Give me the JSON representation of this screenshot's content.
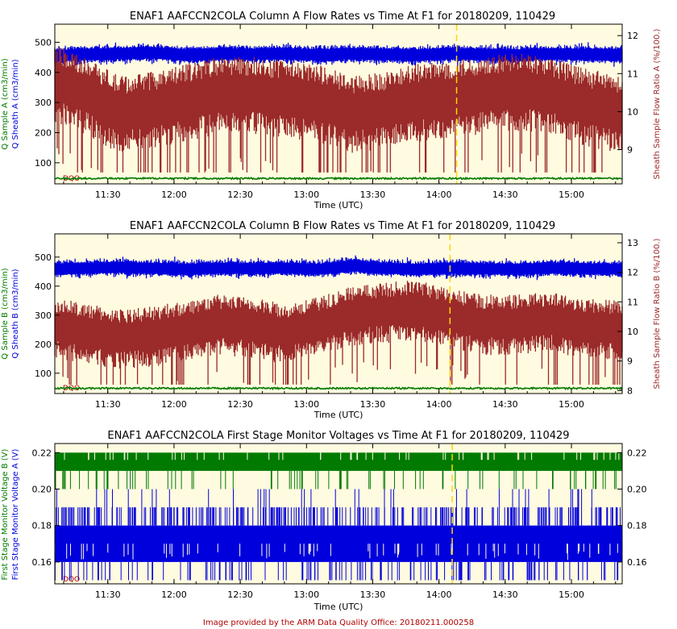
{
  "footer": "Image provided by the ARM Data Quality Office: 20180211.000258",
  "colors": {
    "plot_bg": "#fffbe0",
    "blue": "#0000dd",
    "red": "#9b2a2a",
    "green": "#007a00",
    "yellow_marker": "#ffd700"
  },
  "chart_data": [
    {
      "type": "line",
      "title": "ENAF1  AAFCCN2COLA  Column A Flow Rates vs Time At F1  for 20180209, 110429",
      "xlabel": "Time (UTC)",
      "x_ticks": [
        "11:30",
        "12:00",
        "12:30",
        "13:00",
        "13:30",
        "14:00",
        "14:30",
        "15:00"
      ],
      "x_range": [
        "11:06",
        "15:23"
      ],
      "ylabel_left": [
        {
          "text": "Q Sample A (cm3/min)",
          "color": "#007a00"
        },
        {
          "text": "Q Sheath A (cm3/min)",
          "color": "#0000dd"
        }
      ],
      "ylabel_right": {
        "text": "Sheath Sample Flow Ratio A (%/100.)",
        "color": "#9b2a2a"
      },
      "y_left_ticks": [
        "100",
        "200",
        "300",
        "400",
        "500"
      ],
      "y_left_range": [
        30,
        560
      ],
      "y_right_ticks": [
        "9",
        "10",
        "11",
        "12"
      ],
      "y_right_range": [
        8.1,
        12.3
      ],
      "dqo_label": "DQO",
      "series": [
        {
          "name": "Q Sheath A",
          "axis": "left",
          "color": "#0000dd",
          "x": [
            "11:06",
            "11:20",
            "11:35",
            "11:50",
            "12:05",
            "12:20",
            "12:35",
            "12:50",
            "13:05",
            "13:20",
            "13:35",
            "13:50",
            "14:05",
            "14:20",
            "14:35",
            "14:50",
            "15:05",
            "15:23"
          ],
          "values": [
            455,
            460,
            462,
            465,
            458,
            462,
            460,
            463,
            458,
            462,
            460,
            458,
            462,
            460,
            458,
            462,
            460,
            458
          ]
        },
        {
          "name": "Sheath Sample Flow Ratio A",
          "axis": "right",
          "color": "#9b2a2a",
          "x": [
            "11:06",
            "11:20",
            "11:35",
            "11:50",
            "12:05",
            "12:20",
            "12:35",
            "12:50",
            "13:05",
            "13:20",
            "13:35",
            "13:50",
            "14:05",
            "14:20",
            "14:35",
            "14:50",
            "15:05",
            "15:23"
          ],
          "values": [
            10.8,
            10.5,
            10.0,
            10.1,
            10.3,
            10.5,
            10.5,
            10.4,
            10.3,
            10.0,
            10.1,
            10.3,
            10.4,
            10.5,
            10.6,
            10.5,
            10.2,
            10.0
          ]
        },
        {
          "name": "Q Sample A",
          "axis": "left",
          "color": "#007a00",
          "x": [
            "11:06",
            "15:23"
          ],
          "values": [
            48,
            48
          ]
        }
      ],
      "marker_time": "14:08"
    },
    {
      "type": "line",
      "title": "ENAF1  AAFCCN2COLA  Column B Flow Rates vs Time At F1  for 20180209, 110429",
      "xlabel": "Time (UTC)",
      "x_ticks": [
        "11:30",
        "12:00",
        "12:30",
        "13:00",
        "13:30",
        "14:00",
        "14:30",
        "15:00"
      ],
      "x_range": [
        "11:06",
        "15:23"
      ],
      "ylabel_left": [
        {
          "text": "Q Sample B (cm3/min)",
          "color": "#007a00"
        },
        {
          "text": "Q Sheath B (cm3/min)",
          "color": "#0000dd"
        }
      ],
      "ylabel_right": {
        "text": "Sheath Sample Flow Ratio B (%/100.)",
        "color": "#9b2a2a"
      },
      "y_left_ticks": [
        "100",
        "200",
        "300",
        "400",
        "500"
      ],
      "y_left_range": [
        30,
        580
      ],
      "y_right_ticks": [
        "8",
        "9",
        "10",
        "11",
        "12",
        "13"
      ],
      "y_right_range": [
        7.9,
        13.3
      ],
      "dqo_label": "DQO",
      "series": [
        {
          "name": "Q Sheath B",
          "axis": "left",
          "color": "#0000dd",
          "x": [
            "11:06",
            "11:20",
            "11:35",
            "11:50",
            "12:05",
            "12:20",
            "12:35",
            "12:50",
            "13:05",
            "13:20",
            "13:35",
            "13:50",
            "14:05",
            "14:20",
            "14:35",
            "14:50",
            "15:05",
            "15:23"
          ],
          "values": [
            458,
            462,
            465,
            462,
            458,
            462,
            460,
            463,
            458,
            470,
            462,
            458,
            462,
            460,
            458,
            462,
            460,
            458
          ]
        },
        {
          "name": "Sheath Sample Flow Ratio B",
          "axis": "right",
          "color": "#9b2a2a",
          "x": [
            "11:06",
            "11:20",
            "11:35",
            "11:50",
            "12:05",
            "12:20",
            "12:35",
            "12:50",
            "13:05",
            "13:20",
            "13:35",
            "13:50",
            "14:05",
            "14:20",
            "14:35",
            "14:50",
            "15:05",
            "15:23"
          ],
          "values": [
            10.2,
            10.0,
            9.8,
            9.9,
            10.1,
            10.3,
            10.2,
            10.0,
            10.2,
            10.6,
            10.7,
            10.8,
            10.5,
            10.3,
            10.3,
            10.4,
            10.2,
            10.1
          ]
        },
        {
          "name": "Q Sample B",
          "axis": "left",
          "color": "#007a00",
          "x": [
            "11:06",
            "15:23"
          ],
          "values": [
            48,
            48
          ]
        }
      ],
      "marker_time": "14:05"
    },
    {
      "type": "line",
      "title": "ENAF1  AAFCCN2COLA  First Stage Monitor Voltages vs Time At F1  for 20180209, 110429",
      "xlabel": "Time (UTC)",
      "x_ticks": [
        "11:30",
        "12:00",
        "12:30",
        "13:00",
        "13:30",
        "14:00",
        "14:30",
        "15:00"
      ],
      "x_range": [
        "11:06",
        "15:23"
      ],
      "ylabel_left": [
        {
          "text": "First Stage Monitor Voltage B (V)",
          "color": "#007a00"
        },
        {
          "text": "First Stage Monitor Voltage A (V)",
          "color": "#0000dd"
        }
      ],
      "y_left_ticks": [
        "0.16",
        "0.18",
        "0.20",
        "0.22"
      ],
      "y_right_ticks": [
        "0.16",
        "0.18",
        "0.20",
        "0.22"
      ],
      "y_left_range": [
        0.148,
        0.225
      ],
      "dqo_label": "DQO",
      "series": [
        {
          "name": "First Stage Monitor Voltage B",
          "axis": "left",
          "color": "#007a00",
          "band": [
            0.21,
            0.22
          ],
          "occasional_low": 0.2
        },
        {
          "name": "First Stage Monitor Voltage A",
          "axis": "left",
          "color": "#0000dd",
          "band": [
            0.16,
            0.18
          ],
          "occasional_high": 0.19,
          "occasional_low": 0.15
        }
      ],
      "marker_time": "14:06"
    }
  ]
}
